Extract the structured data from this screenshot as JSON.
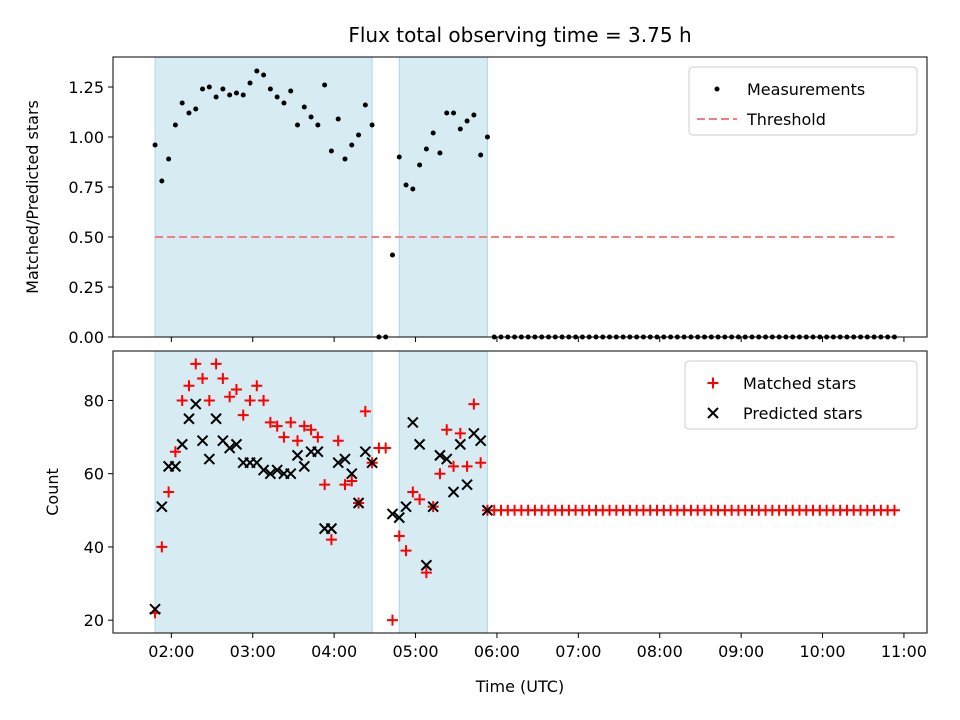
{
  "title": "Flux total observing time = 3.75 h",
  "xlabel": "Time (UTC)",
  "x_ticks": [
    "02:00",
    "03:00",
    "04:00",
    "05:00",
    "06:00",
    "07:00",
    "08:00",
    "09:00",
    "10:00",
    "11:00"
  ],
  "colors": {
    "shade": "#add8e6",
    "threshold": "#f08080",
    "matched": "#ff0000",
    "predicted": "#000000",
    "measure": "#000000"
  },
  "chart_data": [
    {
      "type": "scatter",
      "ylabel": "Matched/Predicted stars",
      "xlim": [
        "01:17",
        "11:17"
      ],
      "ylim": [
        0,
        1.4
      ],
      "y_ticks": [
        "0.00",
        "0.25",
        "0.50",
        "0.75",
        "1.00",
        "1.25"
      ],
      "legend": {
        "position": "top-right",
        "entries": [
          "Measurements",
          "Threshold"
        ]
      },
      "shaded_intervals": [
        [
          "01:48",
          "04:28"
        ],
        [
          "04:48",
          "05:53"
        ]
      ],
      "threshold": {
        "name": "Threshold",
        "y": 0.5,
        "x": [
          "01:48",
          "10:53"
        ]
      },
      "series": [
        {
          "name": "Measurements",
          "x": [
            "01:48",
            "01:53",
            "01:58",
            "02:03",
            "02:08",
            "02:13",
            "02:18",
            "02:23",
            "02:28",
            "02:33",
            "02:38",
            "02:43",
            "02:48",
            "02:53",
            "02:58",
            "03:03",
            "03:08",
            "03:13",
            "03:18",
            "03:23",
            "03:28",
            "03:33",
            "03:38",
            "03:43",
            "03:48",
            "03:53",
            "03:58",
            "04:03",
            "04:08",
            "04:13",
            "04:18",
            "04:23",
            "04:28",
            "04:33",
            "04:38",
            "04:43",
            "04:48",
            "04:53",
            "04:58",
            "05:03",
            "05:08",
            "05:13",
            "05:18",
            "05:23",
            "05:28",
            "05:33",
            "05:38",
            "05:43",
            "05:48",
            "05:53",
            "05:58",
            "06:03",
            "06:08",
            "06:13",
            "06:18",
            "06:23",
            "06:28",
            "06:33",
            "06:38",
            "06:43",
            "06:48",
            "06:53",
            "06:58",
            "07:03",
            "07:08",
            "07:13",
            "07:18",
            "07:23",
            "07:28",
            "07:33",
            "07:38",
            "07:43",
            "07:48",
            "07:53",
            "07:58",
            "08:03",
            "08:08",
            "08:13",
            "08:18",
            "08:23",
            "08:28",
            "08:33",
            "08:38",
            "08:43",
            "08:48",
            "08:53",
            "08:58",
            "09:03",
            "09:08",
            "09:13",
            "09:18",
            "09:23",
            "09:28",
            "09:33",
            "09:38",
            "09:43",
            "09:48",
            "09:53",
            "09:58",
            "10:03",
            "10:08",
            "10:13",
            "10:18",
            "10:23",
            "10:28",
            "10:33",
            "10:38",
            "10:43",
            "10:48",
            "10:53"
          ],
          "y": [
            0.96,
            0.78,
            0.89,
            1.06,
            1.17,
            1.12,
            1.14,
            1.24,
            1.25,
            1.2,
            1.24,
            1.21,
            1.22,
            1.21,
            1.27,
            1.33,
            1.31,
            1.24,
            1.2,
            1.17,
            1.23,
            1.06,
            1.15,
            1.1,
            1.06,
            1.26,
            0.93,
            1.09,
            0.89,
            0.96,
            1.01,
            1.16,
            1.06,
            0.0,
            0.0,
            0.41,
            0.9,
            0.76,
            0.74,
            0.86,
            0.94,
            1.02,
            0.92,
            1.12,
            1.12,
            1.04,
            1.08,
            1.11,
            0.91,
            1.0,
            0.0,
            0.0,
            0.0,
            0.0,
            0.0,
            0.0,
            0.0,
            0.0,
            0.0,
            0.0,
            0.0,
            0.0,
            0.0,
            0.0,
            0.0,
            0.0,
            0.0,
            0.0,
            0.0,
            0.0,
            0.0,
            0.0,
            0.0,
            0.0,
            0.0,
            0.0,
            0.0,
            0.0,
            0.0,
            0.0,
            0.0,
            0.0,
            0.0,
            0.0,
            0.0,
            0.0,
            0.0,
            0.0,
            0.0,
            0.0,
            0.0,
            0.0,
            0.0,
            0.0,
            0.0,
            0.0,
            0.0,
            0.0,
            0.0,
            0.0,
            0.0,
            0.0,
            0.0,
            0.0,
            0.0,
            0.0,
            0.0,
            0.0,
            0.0,
            0.0
          ]
        }
      ]
    },
    {
      "type": "scatter",
      "ylabel": "Count",
      "xlim": [
        "01:17",
        "11:17"
      ],
      "ylim": [
        16.5,
        93.5
      ],
      "y_ticks": [
        "20",
        "40",
        "60",
        "80"
      ],
      "legend": {
        "position": "top-right",
        "entries": [
          "Matched stars",
          "Predicted stars"
        ]
      },
      "shaded_intervals": [
        [
          "01:48",
          "04:28"
        ],
        [
          "04:48",
          "05:53"
        ]
      ],
      "series": [
        {
          "name": "Matched stars",
          "marker": "+",
          "x": [
            "01:48",
            "01:53",
            "01:58",
            "02:03",
            "02:08",
            "02:13",
            "02:18",
            "02:23",
            "02:28",
            "02:33",
            "02:38",
            "02:43",
            "02:48",
            "02:53",
            "02:58",
            "03:03",
            "03:08",
            "03:13",
            "03:18",
            "03:23",
            "03:28",
            "03:33",
            "03:38",
            "03:43",
            "03:48",
            "03:53",
            "03:58",
            "04:03",
            "04:08",
            "04:13",
            "04:18",
            "04:23",
            "04:28",
            "04:33",
            "04:38",
            "04:43",
            "04:48",
            "04:53",
            "04:58",
            "05:03",
            "05:08",
            "05:13",
            "05:18",
            "05:23",
            "05:28",
            "05:33",
            "05:38",
            "05:43",
            "05:48",
            "05:53",
            "05:58",
            "06:03",
            "06:08",
            "06:13",
            "06:18",
            "06:23",
            "06:28",
            "06:33",
            "06:38",
            "06:43",
            "06:48",
            "06:53",
            "06:58",
            "07:03",
            "07:08",
            "07:13",
            "07:18",
            "07:23",
            "07:28",
            "07:33",
            "07:38",
            "07:43",
            "07:48",
            "07:53",
            "07:58",
            "08:03",
            "08:08",
            "08:13",
            "08:18",
            "08:23",
            "08:28",
            "08:33",
            "08:38",
            "08:43",
            "08:48",
            "08:53",
            "08:58",
            "09:03",
            "09:08",
            "09:13",
            "09:18",
            "09:23",
            "09:28",
            "09:33",
            "09:38",
            "09:43",
            "09:48",
            "09:53",
            "09:58",
            "10:03",
            "10:08",
            "10:13",
            "10:18",
            "10:23",
            "10:28",
            "10:33",
            "10:38",
            "10:43",
            "10:48",
            "10:53"
          ],
          "y": [
            22,
            40,
            55,
            66,
            80,
            84,
            90,
            86,
            80,
            90,
            86,
            81,
            83,
            76,
            80,
            84,
            80,
            74,
            73,
            70,
            74,
            69,
            73,
            72,
            70,
            57,
            42,
            69,
            57,
            58,
            52,
            77,
            63,
            67,
            67,
            20,
            43,
            39,
            55,
            53,
            33,
            51,
            60,
            72,
            62,
            71,
            62,
            79,
            63,
            50,
            50,
            50,
            50,
            50,
            50,
            50,
            50,
            50,
            50,
            50,
            50,
            50,
            50,
            50,
            50,
            50,
            50,
            50,
            50,
            50,
            50,
            50,
            50,
            50,
            50,
            50,
            50,
            50,
            50,
            50,
            50,
            50,
            50,
            50,
            50,
            50,
            50,
            50,
            50,
            50,
            50,
            50,
            50,
            50,
            50,
            50,
            50,
            50,
            50,
            50,
            50,
            50,
            50,
            50,
            50,
            50,
            50,
            50,
            50,
            50
          ]
        },
        {
          "name": "Predicted stars",
          "marker": "x",
          "x": [
            "01:48",
            "01:53",
            "01:58",
            "02:03",
            "02:08",
            "02:13",
            "02:18",
            "02:23",
            "02:28",
            "02:33",
            "02:38",
            "02:43",
            "02:48",
            "02:53",
            "02:58",
            "03:03",
            "03:08",
            "03:13",
            "03:18",
            "03:23",
            "03:28",
            "03:33",
            "03:38",
            "03:43",
            "03:48",
            "03:53",
            "03:58",
            "04:03",
            "04:08",
            "04:13",
            "04:18",
            "04:23",
            "04:28",
            "04:43",
            "04:48",
            "04:53",
            "04:58",
            "05:03",
            "05:08",
            "05:13",
            "05:18",
            "05:23",
            "05:28",
            "05:33",
            "05:38",
            "05:43",
            "05:48",
            "05:53"
          ],
          "y": [
            23,
            51,
            62,
            62,
            68,
            75,
            79,
            69,
            64,
            75,
            69,
            67,
            68,
            63,
            63,
            63,
            61,
            60,
            61,
            60,
            60,
            65,
            62,
            66,
            66,
            45,
            45,
            63,
            64,
            60,
            52,
            66,
            63,
            49,
            48,
            51,
            74,
            68,
            35,
            51,
            65,
            64,
            55,
            68,
            57,
            71,
            69,
            50
          ]
        }
      ]
    }
  ]
}
